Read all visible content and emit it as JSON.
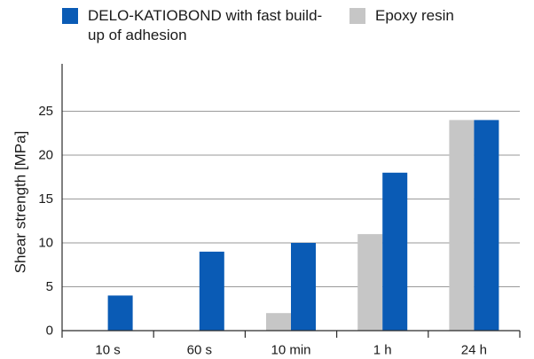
{
  "colors": {
    "blue": "#0a5bb5",
    "grey": "#c6c6c6",
    "grid": "#9a9a9a",
    "axis": "#2b2b2b"
  },
  "legend": {
    "series_1": "DELO-KATIOBOND with fast build-up of adhesion",
    "series_2": "Epoxy resin"
  },
  "chart_data": {
    "type": "bar",
    "title": "",
    "xlabel": "",
    "ylabel": "Shear strength [MPa]",
    "ylim": [
      0,
      30
    ],
    "yticks": [
      0,
      5,
      10,
      15,
      20,
      25
    ],
    "grid": "horizontal",
    "legend_position": "top",
    "categories": [
      "10 s",
      "60 s",
      "10 min",
      "1 h",
      "24 h"
    ],
    "series": [
      {
        "name": "Epoxy resin",
        "color": "grey",
        "values": [
          0,
          0,
          2,
          11,
          24
        ]
      },
      {
        "name": "DELO-KATIOBOND with fast build-up of adhesion",
        "color": "blue",
        "values": [
          4,
          9,
          10,
          18,
          24
        ]
      }
    ]
  }
}
